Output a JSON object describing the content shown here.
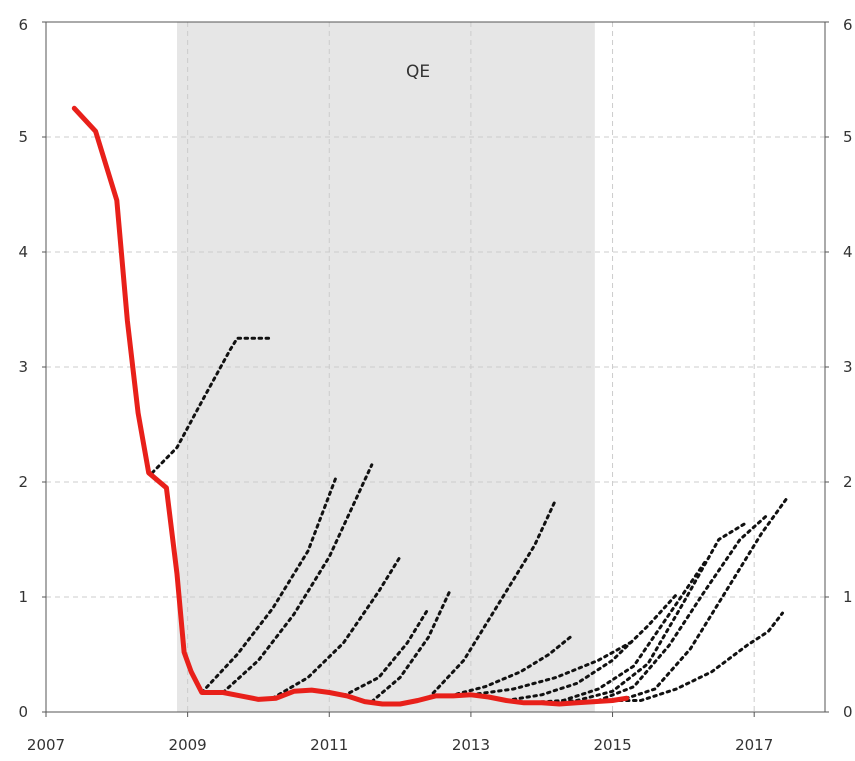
{
  "chart_data": {
    "type": "line",
    "title": "",
    "xlabel": "",
    "ylabel": "",
    "xlim": [
      2007,
      2018
    ],
    "ylim": [
      0,
      6
    ],
    "x_ticks": [
      "2007",
      "2009",
      "2011",
      "2013",
      "2015",
      "2017"
    ],
    "y_ticks": [
      "0",
      "1",
      "2",
      "3",
      "4",
      "5",
      "6"
    ],
    "grid": true,
    "dual_y_axis": true,
    "shaded_region": {
      "label": "QE",
      "x_start": 2008.85,
      "x_end": 2014.75,
      "color": "#e6e6e6"
    },
    "actual": {
      "color": "#e8201a",
      "points": [
        [
          2007.4,
          5.25
        ],
        [
          2007.7,
          5.05
        ],
        [
          2008.0,
          4.45
        ],
        [
          2008.15,
          3.4
        ],
        [
          2008.3,
          2.6
        ],
        [
          2008.45,
          2.08
        ],
        [
          2008.7,
          1.95
        ],
        [
          2008.85,
          1.2
        ],
        [
          2008.95,
          0.52
        ],
        [
          2009.05,
          0.35
        ],
        [
          2009.2,
          0.17
        ],
        [
          2009.5,
          0.17
        ],
        [
          2009.75,
          0.14
        ],
        [
          2010.0,
          0.11
        ],
        [
          2010.25,
          0.12
        ],
        [
          2010.5,
          0.18
        ],
        [
          2010.75,
          0.19
        ],
        [
          2011.0,
          0.17
        ],
        [
          2011.25,
          0.14
        ],
        [
          2011.5,
          0.09
        ],
        [
          2011.75,
          0.07
        ],
        [
          2012.0,
          0.07
        ],
        [
          2012.25,
          0.1
        ],
        [
          2012.5,
          0.14
        ],
        [
          2012.75,
          0.14
        ],
        [
          2013.0,
          0.15
        ],
        [
          2013.25,
          0.13
        ],
        [
          2013.5,
          0.1
        ],
        [
          2013.75,
          0.08
        ],
        [
          2014.0,
          0.08
        ],
        [
          2014.25,
          0.07
        ],
        [
          2014.5,
          0.08
        ],
        [
          2014.75,
          0.09
        ],
        [
          2015.0,
          0.1
        ],
        [
          2015.2,
          0.12
        ]
      ]
    },
    "forecasts": {
      "color": "#111111",
      "series": [
        [
          [
            2008.5,
            2.08
          ],
          [
            2008.85,
            2.3
          ],
          [
            2009.2,
            2.7
          ],
          [
            2009.6,
            3.15
          ],
          [
            2009.7,
            3.25
          ],
          [
            2010.2,
            3.25
          ]
        ],
        [
          [
            2009.2,
            0.17
          ],
          [
            2009.7,
            0.5
          ],
          [
            2010.2,
            0.9
          ],
          [
            2010.7,
            1.4
          ],
          [
            2011.1,
            2.05
          ]
        ],
        [
          [
            2009.5,
            0.17
          ],
          [
            2010.0,
            0.45
          ],
          [
            2010.5,
            0.85
          ],
          [
            2011.0,
            1.35
          ],
          [
            2011.6,
            2.15
          ]
        ],
        [
          [
            2010.2,
            0.12
          ],
          [
            2010.7,
            0.3
          ],
          [
            2011.2,
            0.6
          ],
          [
            2011.7,
            1.05
          ],
          [
            2012.0,
            1.35
          ]
        ],
        [
          [
            2011.2,
            0.14
          ],
          [
            2011.7,
            0.3
          ],
          [
            2012.1,
            0.6
          ],
          [
            2012.4,
            0.9
          ]
        ],
        [
          [
            2011.6,
            0.09
          ],
          [
            2012.0,
            0.3
          ],
          [
            2012.4,
            0.65
          ],
          [
            2012.7,
            1.05
          ]
        ],
        [
          [
            2012.4,
            0.12
          ],
          [
            2012.9,
            0.45
          ],
          [
            2013.4,
            0.95
          ],
          [
            2013.9,
            1.45
          ],
          [
            2014.2,
            1.85
          ]
        ],
        [
          [
            2012.7,
            0.14
          ],
          [
            2013.2,
            0.22
          ],
          [
            2013.7,
            0.35
          ],
          [
            2014.1,
            0.5
          ],
          [
            2014.4,
            0.65
          ]
        ],
        [
          [
            2013.0,
            0.15
          ],
          [
            2013.6,
            0.2
          ],
          [
            2014.2,
            0.3
          ],
          [
            2014.8,
            0.45
          ],
          [
            2015.3,
            0.62
          ]
        ],
        [
          [
            2013.5,
            0.1
          ],
          [
            2014.0,
            0.15
          ],
          [
            2014.5,
            0.25
          ],
          [
            2015.0,
            0.45
          ],
          [
            2015.5,
            0.75
          ],
          [
            2015.9,
            1.02
          ]
        ],
        [
          [
            2013.8,
            0.08
          ],
          [
            2014.3,
            0.1
          ],
          [
            2014.8,
            0.2
          ],
          [
            2015.3,
            0.4
          ],
          [
            2015.8,
            0.85
          ],
          [
            2016.3,
            1.3
          ]
        ],
        [
          [
            2014.0,
            0.08
          ],
          [
            2014.5,
            0.1
          ],
          [
            2015.0,
            0.18
          ],
          [
            2015.5,
            0.42
          ],
          [
            2016.0,
            0.95
          ],
          [
            2016.5,
            1.5
          ],
          [
            2016.9,
            1.65
          ]
        ],
        [
          [
            2014.3,
            0.08
          ],
          [
            2014.8,
            0.1
          ],
          [
            2015.3,
            0.22
          ],
          [
            2015.8,
            0.58
          ],
          [
            2016.3,
            1.05
          ],
          [
            2016.8,
            1.5
          ],
          [
            2017.2,
            1.72
          ]
        ],
        [
          [
            2014.6,
            0.08
          ],
          [
            2015.1,
            0.1
          ],
          [
            2015.6,
            0.2
          ],
          [
            2016.1,
            0.55
          ],
          [
            2016.6,
            1.05
          ],
          [
            2017.1,
            1.55
          ],
          [
            2017.45,
            1.85
          ]
        ],
        [
          [
            2015.0,
            0.1
          ],
          [
            2015.4,
            0.1
          ],
          [
            2015.9,
            0.2
          ],
          [
            2016.4,
            0.35
          ],
          [
            2016.9,
            0.58
          ],
          [
            2017.2,
            0.7
          ],
          [
            2017.4,
            0.86
          ]
        ]
      ]
    }
  }
}
